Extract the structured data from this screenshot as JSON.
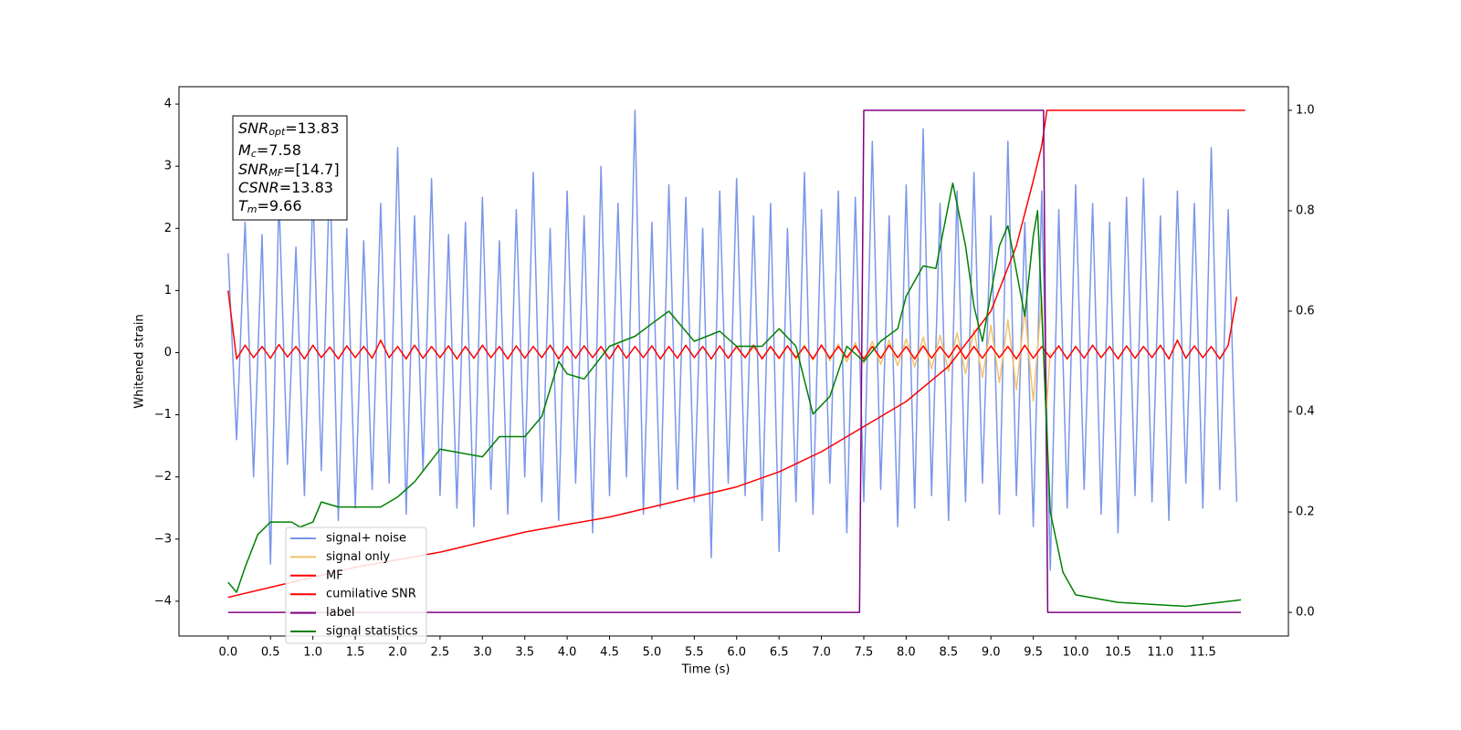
{
  "chart_data": {
    "type": "line",
    "xlabel": "Time (s)",
    "ylabel": "Whitened strain",
    "xlim": [
      -0.58,
      12.51
    ],
    "ylim": [
      -4.56,
      4.28
    ],
    "y2lim": [
      -0.047,
      1.047
    ],
    "xticks": [
      {
        "value": 0,
        "label": "0.0"
      },
      0.5,
      {
        "value": 1,
        "label": "1.0"
      },
      1.5,
      {
        "value": 2,
        "label": "2.0"
      },
      2.5,
      {
        "value": 3,
        "label": "3.0"
      },
      3.5,
      {
        "value": 4,
        "label": "4.0"
      },
      4.5,
      {
        "value": 5,
        "label": "5.0"
      },
      5.5,
      {
        "value": 6,
        "label": "6.0"
      },
      6.5,
      {
        "value": 7,
        "label": "7.0"
      },
      7.5,
      {
        "value": 8,
        "label": "8.0"
      },
      8.5,
      {
        "value": 9,
        "label": "9.0"
      },
      9.5,
      {
        "value": 10,
        "label": "10.0"
      },
      10.5,
      {
        "value": 11,
        "label": "11.0"
      },
      11.5
    ],
    "yticks": [
      {
        "value": -4,
        "label": "−4"
      },
      {
        "value": -3,
        "label": "−3"
      },
      {
        "value": -2,
        "label": "−2"
      },
      {
        "value": -1,
        "label": "−1"
      },
      0,
      1,
      2,
      3,
      4
    ],
    "y2ticks": [
      {
        "value": 0,
        "label": "0.0"
      },
      0.2,
      0.4,
      0.6,
      0.8,
      {
        "value": 1,
        "label": "1.0"
      }
    ],
    "x": [
      0.0,
      0.1,
      0.2,
      0.3,
      0.4,
      0.5,
      0.6,
      0.7,
      0.8,
      0.9,
      1.0,
      1.1,
      1.2,
      1.3,
      1.4,
      1.5,
      1.6,
      1.7,
      1.8,
      1.9,
      2.0,
      2.1,
      2.2,
      2.3,
      2.4,
      2.5,
      2.6,
      2.7,
      2.8,
      2.9,
      3.0,
      3.1,
      3.2,
      3.3,
      3.4,
      3.5,
      3.6,
      3.7,
      3.8,
      3.9,
      4.0,
      4.1,
      4.2,
      4.3,
      4.4,
      4.5,
      4.6,
      4.7,
      4.8,
      4.9,
      5.0,
      5.1,
      5.2,
      5.3,
      5.4,
      5.5,
      5.6,
      5.7,
      5.8,
      5.9,
      6.0,
      6.1,
      6.2,
      6.3,
      6.4,
      6.5,
      6.6,
      6.7,
      6.8,
      6.9,
      7.0,
      7.1,
      7.2,
      7.3,
      7.4,
      7.5,
      7.6,
      7.7,
      7.8,
      7.9,
      8.0,
      8.1,
      8.2,
      8.3,
      8.4,
      8.5,
      8.6,
      8.7,
      8.8,
      8.9,
      9.0,
      9.1,
      9.2,
      9.3,
      9.4,
      9.5,
      9.6,
      9.7,
      9.8,
      9.9,
      10.0,
      10.1,
      10.2,
      10.3,
      10.4,
      10.5,
      10.6,
      10.7,
      10.8,
      10.9,
      11.0,
      11.1,
      11.2,
      11.3,
      11.4,
      11.5,
      11.6,
      11.7,
      11.8,
      11.9
    ],
    "series": [
      {
        "name": "signal+ noise",
        "color": "#7a96ea",
        "values": [
          1.6,
          -1.4,
          2.1,
          -2.0,
          1.9,
          -3.4,
          2.5,
          -1.8,
          1.7,
          -2.3,
          2.6,
          -1.9,
          3.0,
          -2.7,
          2.0,
          -2.5,
          1.8,
          -2.2,
          2.4,
          -2.1,
          3.3,
          -2.6,
          2.2,
          -1.9,
          2.8,
          -2.3,
          1.9,
          -2.5,
          2.1,
          -2.8,
          2.5,
          -2.2,
          1.8,
          -2.6,
          2.3,
          -2.0,
          2.9,
          -2.4,
          2.0,
          -2.7,
          2.6,
          -2.1,
          2.2,
          -2.9,
          3.0,
          -2.3,
          2.4,
          -2.0,
          3.9,
          -2.6,
          2.1,
          -2.5,
          2.7,
          -2.2,
          2.5,
          -2.4,
          2.0,
          -3.3,
          2.6,
          -2.1,
          2.8,
          -2.3,
          2.2,
          -2.7,
          2.4,
          -3.2,
          2.0,
          -2.4,
          2.9,
          -2.6,
          2.3,
          -2.1,
          2.6,
          -2.9,
          2.5,
          -2.4,
          3.4,
          -2.2,
          2.2,
          -2.8,
          2.7,
          -2.5,
          3.6,
          -2.3,
          2.4,
          -2.7,
          2.6,
          -2.4,
          2.9,
          -2.1,
          2.2,
          -2.6,
          3.4,
          -2.3,
          2.1,
          -2.8,
          2.6,
          -3.5,
          2.3,
          -2.5,
          2.7,
          -2.2,
          2.4,
          -2.6,
          2.1,
          -2.9,
          2.5,
          -2.3,
          2.8,
          -2.4,
          2.2,
          -2.7,
          2.6,
          -2.1,
          2.4,
          -2.5,
          3.3,
          -2.2,
          2.3,
          -2.4
        ]
      },
      {
        "name": "signal only",
        "color": "#f2c16a",
        "x": [
          6.0,
          6.1,
          6.2,
          6.3,
          6.4,
          6.5,
          6.6,
          6.7,
          6.8,
          6.9,
          7.0,
          7.1,
          7.2,
          7.3,
          7.4,
          7.5,
          7.6,
          7.7,
          7.8,
          7.9,
          8.0,
          8.1,
          8.2,
          8.3,
          8.4,
          8.5,
          8.6,
          8.7,
          8.8,
          8.9,
          9.0,
          9.1,
          9.2,
          9.3,
          9.4,
          9.5,
          9.6,
          9.65,
          9.7
        ],
        "values": [
          0.08,
          -0.08,
          0.09,
          -0.09,
          0.1,
          -0.1,
          0.11,
          -0.11,
          0.12,
          -0.12,
          0.13,
          -0.13,
          0.14,
          -0.15,
          0.16,
          -0.17,
          0.18,
          -0.19,
          0.2,
          -0.21,
          0.22,
          -0.23,
          0.25,
          -0.26,
          0.28,
          -0.3,
          0.32,
          -0.34,
          0.37,
          -0.4,
          0.44,
          -0.48,
          0.53,
          -0.6,
          0.68,
          -0.78,
          0.9,
          -1.0,
          0
        ]
      },
      {
        "name": "MF",
        "color": "#ff0000",
        "values": [
          1.0,
          -0.1,
          0.12,
          -0.08,
          0.1,
          -0.09,
          0.13,
          -0.07,
          0.1,
          -0.1,
          0.12,
          -0.08,
          0.09,
          -0.1,
          0.11,
          -0.08,
          0.1,
          -0.09,
          0.2,
          -0.08,
          0.1,
          -0.1,
          0.12,
          -0.09,
          0.1,
          -0.08,
          0.11,
          -0.1,
          0.1,
          -0.09,
          0.12,
          -0.08,
          0.1,
          -0.1,
          0.11,
          -0.09,
          0.1,
          -0.08,
          0.12,
          -0.1,
          0.1,
          -0.09,
          0.11,
          -0.08,
          0.1,
          -0.1,
          0.12,
          -0.09,
          0.1,
          -0.08,
          0.11,
          -0.1,
          0.1,
          -0.09,
          0.12,
          -0.08,
          0.1,
          -0.1,
          0.11,
          -0.09,
          0.1,
          -0.08,
          0.12,
          -0.1,
          0.1,
          -0.09,
          0.11,
          -0.08,
          0.1,
          -0.1,
          0.12,
          -0.09,
          0.1,
          -0.08,
          0.11,
          -0.1,
          0.1,
          -0.09,
          0.12,
          -0.08,
          0.1,
          -0.1,
          0.11,
          -0.09,
          0.1,
          -0.08,
          0.12,
          -0.1,
          0.1,
          -0.09,
          0.11,
          -0.08,
          0.1,
          -0.1,
          0.12,
          -0.09,
          0.1,
          -0.08,
          0.11,
          -0.1,
          0.1,
          -0.09,
          0.12,
          -0.08,
          0.1,
          -0.1,
          0.11,
          -0.09,
          0.1,
          -0.08,
          0.12,
          -0.1,
          0.2,
          -0.09,
          0.11,
          -0.08,
          0.1,
          -0.1,
          0.12,
          0.9
        ]
      },
      {
        "name": "cumilative SNR",
        "color": "#ff0000",
        "axis": "y2",
        "x": [
          0,
          0.5,
          1,
          1.5,
          2,
          2.5,
          3,
          3.5,
          4,
          4.5,
          5,
          5.5,
          6,
          6.5,
          7,
          7.5,
          8,
          8.5,
          9,
          9.3,
          9.5,
          9.6,
          9.66,
          12.0
        ],
        "values": [
          0.03,
          0.05,
          0.07,
          0.09,
          0.105,
          0.12,
          0.14,
          0.16,
          0.175,
          0.19,
          0.21,
          0.23,
          0.25,
          0.28,
          0.32,
          0.37,
          0.42,
          0.49,
          0.6,
          0.73,
          0.86,
          0.93,
          1.0,
          1.0
        ]
      },
      {
        "name": "label",
        "color": "#800080",
        "axis": "y2",
        "x": [
          0,
          7.45,
          7.5,
          9.62,
          9.67,
          11.95
        ],
        "values": [
          0,
          0,
          1,
          1,
          0,
          0
        ]
      },
      {
        "name": "signal statistics",
        "color": "#008000",
        "axis": "y2",
        "x": [
          0.0,
          0.1,
          0.2,
          0.35,
          0.5,
          0.75,
          0.85,
          1.0,
          1.1,
          1.3,
          1.5,
          1.8,
          2.0,
          2.2,
          2.5,
          3.0,
          3.2,
          3.5,
          3.7,
          3.9,
          4.0,
          4.2,
          4.5,
          4.8,
          5.0,
          5.2,
          5.5,
          5.8,
          6.0,
          6.3,
          6.5,
          6.7,
          6.9,
          7.1,
          7.3,
          7.5,
          7.7,
          7.9,
          8.0,
          8.2,
          8.35,
          8.55,
          8.7,
          8.8,
          8.9,
          9.1,
          9.2,
          9.4,
          9.5,
          9.55,
          9.65,
          9.7,
          9.85,
          10.0,
          10.5,
          11.0,
          11.3,
          11.7,
          11.95
        ],
        "values": [
          0.06,
          0.04,
          0.09,
          0.155,
          0.18,
          0.18,
          0.17,
          0.18,
          0.22,
          0.21,
          0.21,
          0.21,
          0.23,
          0.26,
          0.325,
          0.31,
          0.35,
          0.35,
          0.39,
          0.5,
          0.475,
          0.465,
          0.53,
          0.55,
          0.575,
          0.6,
          0.54,
          0.56,
          0.53,
          0.53,
          0.565,
          0.53,
          0.395,
          0.43,
          0.53,
          0.5,
          0.54,
          0.565,
          0.63,
          0.69,
          0.685,
          0.855,
          0.73,
          0.61,
          0.54,
          0.73,
          0.77,
          0.59,
          0.75,
          0.8,
          0.4,
          0.2,
          0.08,
          0.035,
          0.02,
          0.015,
          0.012,
          0.02,
          0.025
        ]
      }
    ],
    "annotations": [
      {
        "symbol": "SNR",
        "subscript": "opt",
        "value": "=13.83"
      },
      {
        "symbol": "M",
        "subscript": "c",
        "value": "=7.58"
      },
      {
        "symbol": "SNR",
        "subscript": "MF",
        "value": "=[14.7]"
      },
      {
        "symbol": "CSNR",
        "value": "=13.83"
      },
      {
        "symbol": "T",
        "subscript": "m",
        "value": "=9.66"
      }
    ]
  }
}
